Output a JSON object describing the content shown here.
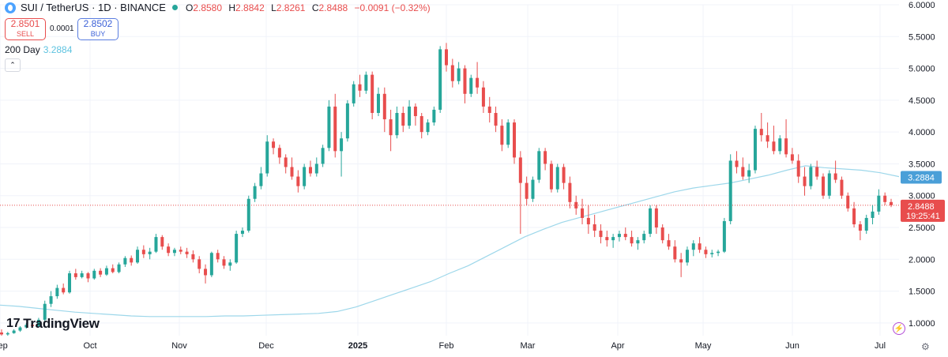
{
  "header": {
    "symbol_title": "SUI / TetherUS · 1D · BINANCE",
    "ohlc": [
      {
        "key": "O",
        "value": "2.8580"
      },
      {
        "key": "H",
        "value": "2.8842"
      },
      {
        "key": "L",
        "value": "2.8261"
      },
      {
        "key": "C",
        "value": "2.8488"
      }
    ],
    "change": "−0.0091 (−0.32%)"
  },
  "trade": {
    "sell_price": "2.8501",
    "sell_label": "SELL",
    "spread": "0.0001",
    "buy_price": "2.8502",
    "buy_label": "BUY"
  },
  "indicator": {
    "name": "200 Day",
    "value": "3.2884"
  },
  "collapse_glyph": "⌃",
  "logo_text": "TradingView",
  "logo_mark": "17",
  "icons": {
    "bolt": "⚡",
    "settings": "⚙"
  },
  "colors": {
    "up": "#26a69a",
    "down": "#e84d4d",
    "ma": "#9dd7ea",
    "ma_label": "#4a9fd8",
    "last": "#e84d4d"
  },
  "chart_data": {
    "type": "candlestick",
    "ylim": [
      0.8,
      6.0
    ],
    "y_ticks": [
      "6.0000",
      "5.5000",
      "5.0000",
      "4.5000",
      "4.0000",
      "3.5000",
      "3.0000",
      "2.5000",
      "2.0000",
      "1.5000",
      "1.0000"
    ],
    "x_ticks": [
      "Sep",
      "Oct",
      "Nov",
      "Dec",
      "2025",
      "Feb",
      "Mar",
      "Apr",
      "May",
      "Jun",
      "Jul"
    ],
    "current_price": {
      "value": 2.8488,
      "label": "2.8488",
      "countdown": "19:25:41"
    },
    "ma_label": {
      "value": 3.2884,
      "label": "3.2884"
    },
    "ohlc_series": [
      [
        0.85,
        0.9,
        0.8,
        0.82
      ],
      [
        0.82,
        0.86,
        0.8,
        0.84
      ],
      [
        0.84,
        0.9,
        0.83,
        0.88
      ],
      [
        0.88,
        0.95,
        0.86,
        0.93
      ],
      [
        0.93,
        1.0,
        0.91,
        0.97
      ],
      [
        0.97,
        1.02,
        0.94,
        0.95
      ],
      [
        0.95,
        1.08,
        0.94,
        1.05
      ],
      [
        1.05,
        1.35,
        1.03,
        1.3
      ],
      [
        1.3,
        1.5,
        1.25,
        1.42
      ],
      [
        1.42,
        1.6,
        1.38,
        1.55
      ],
      [
        1.55,
        1.62,
        1.45,
        1.48
      ],
      [
        1.48,
        1.82,
        1.46,
        1.78
      ],
      [
        1.78,
        1.85,
        1.68,
        1.72
      ],
      [
        1.72,
        1.82,
        1.7,
        1.78
      ],
      [
        1.78,
        1.8,
        1.64,
        1.7
      ],
      [
        1.7,
        1.85,
        1.68,
        1.82
      ],
      [
        1.82,
        1.86,
        1.72,
        1.76
      ],
      [
        1.76,
        1.9,
        1.74,
        1.86
      ],
      [
        1.86,
        1.92,
        1.78,
        1.8
      ],
      [
        1.8,
        1.95,
        1.78,
        1.92
      ],
      [
        1.92,
        2.05,
        1.88,
        2.02
      ],
      [
        2.02,
        2.06,
        1.9,
        1.95
      ],
      [
        1.95,
        2.2,
        1.93,
        2.15
      ],
      [
        2.15,
        2.22,
        2.02,
        2.08
      ],
      [
        2.08,
        2.18,
        2.0,
        2.12
      ],
      [
        2.12,
        2.4,
        2.1,
        2.35
      ],
      [
        2.35,
        2.38,
        2.15,
        2.2
      ],
      [
        2.2,
        2.25,
        2.05,
        2.1
      ],
      [
        2.1,
        2.18,
        2.05,
        2.15
      ],
      [
        2.15,
        2.2,
        2.08,
        2.12
      ],
      [
        2.12,
        2.18,
        2.02,
        2.08
      ],
      [
        2.08,
        2.14,
        1.95,
        2.0
      ],
      [
        2.0,
        2.05,
        1.78,
        1.85
      ],
      [
        1.85,
        1.92,
        1.62,
        1.75
      ],
      [
        1.75,
        2.12,
        1.72,
        2.1
      ],
      [
        2.1,
        2.15,
        1.95,
        2.0
      ],
      [
        2.0,
        2.05,
        1.85,
        1.9
      ],
      [
        1.9,
        2.0,
        1.82,
        1.95
      ],
      [
        1.95,
        2.45,
        1.93,
        2.4
      ],
      [
        2.4,
        2.5,
        2.35,
        2.45
      ],
      [
        2.45,
        3.0,
        2.42,
        2.95
      ],
      [
        2.95,
        3.2,
        2.9,
        3.15
      ],
      [
        3.15,
        3.45,
        3.1,
        3.35
      ],
      [
        3.35,
        3.95,
        3.3,
        3.85
      ],
      [
        3.85,
        3.9,
        3.65,
        3.75
      ],
      [
        3.75,
        3.8,
        3.5,
        3.6
      ],
      [
        3.6,
        3.65,
        3.35,
        3.45
      ],
      [
        3.45,
        3.6,
        3.25,
        3.3
      ],
      [
        3.3,
        3.4,
        3.05,
        3.15
      ],
      [
        3.15,
        3.5,
        3.1,
        3.45
      ],
      [
        3.45,
        3.55,
        3.3,
        3.35
      ],
      [
        3.35,
        3.6,
        3.3,
        3.5
      ],
      [
        3.5,
        3.8,
        3.45,
        3.75
      ],
      [
        3.75,
        4.5,
        3.7,
        4.4
      ],
      [
        4.4,
        4.6,
        3.6,
        3.7
      ],
      [
        3.7,
        4.0,
        3.3,
        3.9
      ],
      [
        3.9,
        4.5,
        3.85,
        4.45
      ],
      [
        4.45,
        4.8,
        4.4,
        4.75
      ],
      [
        4.75,
        4.9,
        4.55,
        4.65
      ],
      [
        4.65,
        4.95,
        4.6,
        4.9
      ],
      [
        4.9,
        4.95,
        4.2,
        4.3
      ],
      [
        4.3,
        4.7,
        4.25,
        4.6
      ],
      [
        4.6,
        4.7,
        4.0,
        4.2
      ],
      [
        4.2,
        4.35,
        3.7,
        3.95
      ],
      [
        3.95,
        4.4,
        3.9,
        4.3
      ],
      [
        4.3,
        4.4,
        4.0,
        4.1
      ],
      [
        4.1,
        4.5,
        4.05,
        4.4
      ],
      [
        4.4,
        4.45,
        4.1,
        4.25
      ],
      [
        4.25,
        4.3,
        3.9,
        4.0
      ],
      [
        4.0,
        4.2,
        3.95,
        4.15
      ],
      [
        4.15,
        4.4,
        4.1,
        4.35
      ],
      [
        4.35,
        5.35,
        4.3,
        5.3
      ],
      [
        5.3,
        5.4,
        4.95,
        5.05
      ],
      [
        5.05,
        5.15,
        4.7,
        4.8
      ],
      [
        4.8,
        5.1,
        4.75,
        5.0
      ],
      [
        5.0,
        5.05,
        4.45,
        4.6
      ],
      [
        4.6,
        4.9,
        4.55,
        4.85
      ],
      [
        4.85,
        5.1,
        4.6,
        4.7
      ],
      [
        4.7,
        4.8,
        4.3,
        4.4
      ],
      [
        4.4,
        4.55,
        4.15,
        4.3
      ],
      [
        4.3,
        4.4,
        4.0,
        4.1
      ],
      [
        4.1,
        4.2,
        3.7,
        3.8
      ],
      [
        3.8,
        4.2,
        3.75,
        4.15
      ],
      [
        4.15,
        4.2,
        3.5,
        3.6
      ],
      [
        3.6,
        3.7,
        2.4,
        3.2
      ],
      [
        3.2,
        3.3,
        2.85,
        2.95
      ],
      [
        2.95,
        3.3,
        2.9,
        3.25
      ],
      [
        3.25,
        3.75,
        3.2,
        3.7
      ],
      [
        3.7,
        3.75,
        3.4,
        3.5
      ],
      [
        3.5,
        3.55,
        3.05,
        3.1
      ],
      [
        3.1,
        3.5,
        3.05,
        3.45
      ],
      [
        3.45,
        3.5,
        3.1,
        3.2
      ],
      [
        3.2,
        3.3,
        2.8,
        2.9
      ],
      [
        2.9,
        3.0,
        2.7,
        2.8
      ],
      [
        2.8,
        2.95,
        2.55,
        2.65
      ],
      [
        2.65,
        2.85,
        2.4,
        2.55
      ],
      [
        2.55,
        2.7,
        2.35,
        2.45
      ],
      [
        2.45,
        2.55,
        2.25,
        2.35
      ],
      [
        2.35,
        2.45,
        2.2,
        2.3
      ],
      [
        2.3,
        2.4,
        2.18,
        2.35
      ],
      [
        2.35,
        2.45,
        2.28,
        2.4
      ],
      [
        2.4,
        2.5,
        2.3,
        2.35
      ],
      [
        2.35,
        2.45,
        2.2,
        2.25
      ],
      [
        2.25,
        2.35,
        2.15,
        2.3
      ],
      [
        2.3,
        2.45,
        2.25,
        2.4
      ],
      [
        2.4,
        2.85,
        2.35,
        2.8
      ],
      [
        2.8,
        2.85,
        2.4,
        2.5
      ],
      [
        2.5,
        2.55,
        2.25,
        2.3
      ],
      [
        2.3,
        2.4,
        2.15,
        2.2
      ],
      [
        2.2,
        2.3,
        1.95,
        2.0
      ],
      [
        2.0,
        2.1,
        1.72,
        1.95
      ],
      [
        1.95,
        2.2,
        1.9,
        2.15
      ],
      [
        2.15,
        2.3,
        2.05,
        2.25
      ],
      [
        2.25,
        2.35,
        2.1,
        2.15
      ],
      [
        2.15,
        2.2,
        2.02,
        2.08
      ],
      [
        2.08,
        2.15,
        2.03,
        2.1
      ],
      [
        2.1,
        2.15,
        2.05,
        2.12
      ],
      [
        2.12,
        2.65,
        2.1,
        2.6
      ],
      [
        2.6,
        3.65,
        2.55,
        3.55
      ],
      [
        3.55,
        3.7,
        3.35,
        3.45
      ],
      [
        3.45,
        3.6,
        3.25,
        3.3
      ],
      [
        3.3,
        3.5,
        3.2,
        3.4
      ],
      [
        3.4,
        4.1,
        3.35,
        4.05
      ],
      [
        4.05,
        4.3,
        3.85,
        3.95
      ],
      [
        3.95,
        4.15,
        3.75,
        3.85
      ],
      [
        3.85,
        4.1,
        3.65,
        3.7
      ],
      [
        3.7,
        3.95,
        3.65,
        3.9
      ],
      [
        3.9,
        4.2,
        3.6,
        3.65
      ],
      [
        3.65,
        3.75,
        3.5,
        3.55
      ],
      [
        3.55,
        3.65,
        3.2,
        3.3
      ],
      [
        3.3,
        3.45,
        3.0,
        3.15
      ],
      [
        3.15,
        3.5,
        3.1,
        3.45
      ],
      [
        3.45,
        3.55,
        3.25,
        3.3
      ],
      [
        3.3,
        3.35,
        2.95,
        3.0
      ],
      [
        3.0,
        3.4,
        2.95,
        3.35
      ],
      [
        3.35,
        3.55,
        3.2,
        3.25
      ],
      [
        3.25,
        3.3,
        2.95,
        3.0
      ],
      [
        3.0,
        3.05,
        2.75,
        2.8
      ],
      [
        2.8,
        2.9,
        2.5,
        2.55
      ],
      [
        2.55,
        2.6,
        2.3,
        2.45
      ],
      [
        2.45,
        2.7,
        2.4,
        2.65
      ],
      [
        2.65,
        2.85,
        2.55,
        2.75
      ],
      [
        2.75,
        3.1,
        2.7,
        3.0
      ],
      [
        3.0,
        3.05,
        2.85,
        2.9
      ],
      [
        2.9,
        2.95,
        2.82,
        2.85
      ]
    ],
    "ma_series": [
      1.28,
      1.26,
      1.23,
      1.2,
      1.17,
      1.15,
      1.13,
      1.11,
      1.1,
      1.1,
      1.1,
      1.1,
      1.11,
      1.11,
      1.12,
      1.13,
      1.14,
      1.15,
      1.18,
      1.25,
      1.35,
      1.45,
      1.55,
      1.65,
      1.78,
      1.9,
      2.05,
      2.2,
      2.35,
      2.47,
      2.58,
      2.66,
      2.74,
      2.82,
      2.9,
      2.98,
      3.06,
      3.12,
      3.16,
      3.2,
      3.26,
      3.32,
      3.4,
      3.47,
      3.44,
      3.42,
      3.4,
      3.36,
      3.3
    ]
  }
}
